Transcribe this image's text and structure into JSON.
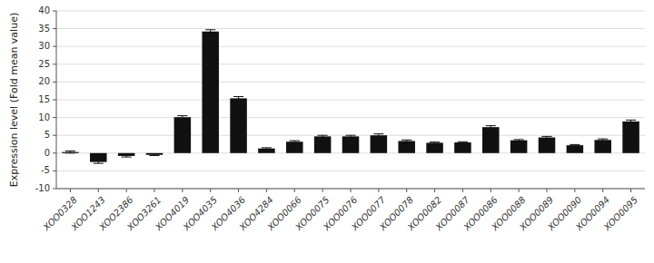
{
  "chart_data": {
    "type": "bar",
    "categories": [
      "XOO0328",
      "XOO1243",
      "XOO2386",
      "XOO3261",
      "XOO4019",
      "XOO4035",
      "XOO4036",
      "XOO4284",
      "XOO0066",
      "XOO0075",
      "XOO0076",
      "XOO0077",
      "XOO0078",
      "XOO0082",
      "XOO0087",
      "XOO0086",
      "XOO0088",
      "XOO0089",
      "XOO0090",
      "XOO0094",
      "XOO0095"
    ],
    "values": [
      0.3,
      -2.5,
      -0.8,
      -0.5,
      10.1,
      34.2,
      15.4,
      1.3,
      3.2,
      4.7,
      4.7,
      5.0,
      3.4,
      2.9,
      3.0,
      7.3,
      3.6,
      4.4,
      2.2,
      3.7,
      8.9
    ],
    "errors": [
      0.3,
      0.4,
      0.3,
      0.2,
      0.4,
      0.5,
      0.5,
      0.2,
      0.3,
      0.3,
      0.3,
      0.4,
      0.3,
      0.2,
      0.2,
      0.4,
      0.2,
      0.3,
      0.2,
      0.3,
      0.4
    ],
    "color": "#111111",
    "ylabel": "Expression level (Fold mean value)",
    "ylim": [
      -10,
      40
    ],
    "yticks": [
      -10,
      -5,
      0,
      5,
      10,
      15,
      20,
      25,
      30,
      35,
      40
    ],
    "grid": true
  }
}
